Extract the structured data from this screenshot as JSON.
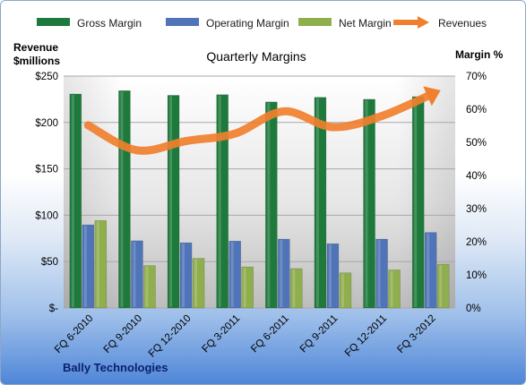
{
  "chart_data": {
    "type": "bar",
    "title": "Quarterly Margins",
    "left_axis_title_line1": "Revenue",
    "left_axis_title_line2": "$millions",
    "right_axis_title": "Margin %",
    "categories": [
      "FQ 6-2010",
      "FQ 9-2010",
      "FQ 12-2010",
      "FQ 3-2011",
      "FQ 6-2011",
      "FQ 9-2011",
      "FQ 12-2011",
      "FQ 3-2012"
    ],
    "left_ylim": [
      0,
      250
    ],
    "left_ticks": [
      0,
      50,
      100,
      150,
      200,
      250
    ],
    "left_tick_labels": [
      "$-",
      "$50",
      "$100",
      "$150",
      "$200",
      "$250"
    ],
    "right_ylim": [
      0,
      70
    ],
    "right_ticks": [
      0,
      10,
      20,
      30,
      40,
      50,
      60,
      70
    ],
    "right_tick_labels": [
      "0%",
      "10%",
      "20%",
      "30%",
      "40%",
      "50%",
      "60%",
      "70%"
    ],
    "series": [
      {
        "name": "Gross Margin",
        "type": "bar",
        "axis": "right",
        "color": "#1e7a3c",
        "values": [
          64.6,
          65.6,
          64.2,
          64.4,
          62.2,
          63.6,
          63.0,
          63.8
        ]
      },
      {
        "name": "Operating Margin",
        "type": "bar",
        "axis": "right",
        "color": "#4f74b8",
        "values": [
          25.1,
          20.3,
          19.7,
          20.2,
          20.8,
          19.4,
          20.8,
          22.8
        ]
      },
      {
        "name": "Net Margin",
        "type": "bar",
        "axis": "right",
        "color": "#8fae4e",
        "values": [
          26.4,
          12.8,
          15.0,
          12.4,
          11.9,
          10.6,
          11.5,
          13.2
        ]
      },
      {
        "name": "Revenues",
        "type": "line",
        "axis": "left",
        "color": "#f07f2e",
        "values": [
          197,
          170,
          180,
          188,
          212,
          195,
          207,
          230
        ]
      }
    ],
    "grid": "horizontal",
    "legend_position": "top"
  },
  "footer": {
    "company": "Bally Technologies"
  }
}
